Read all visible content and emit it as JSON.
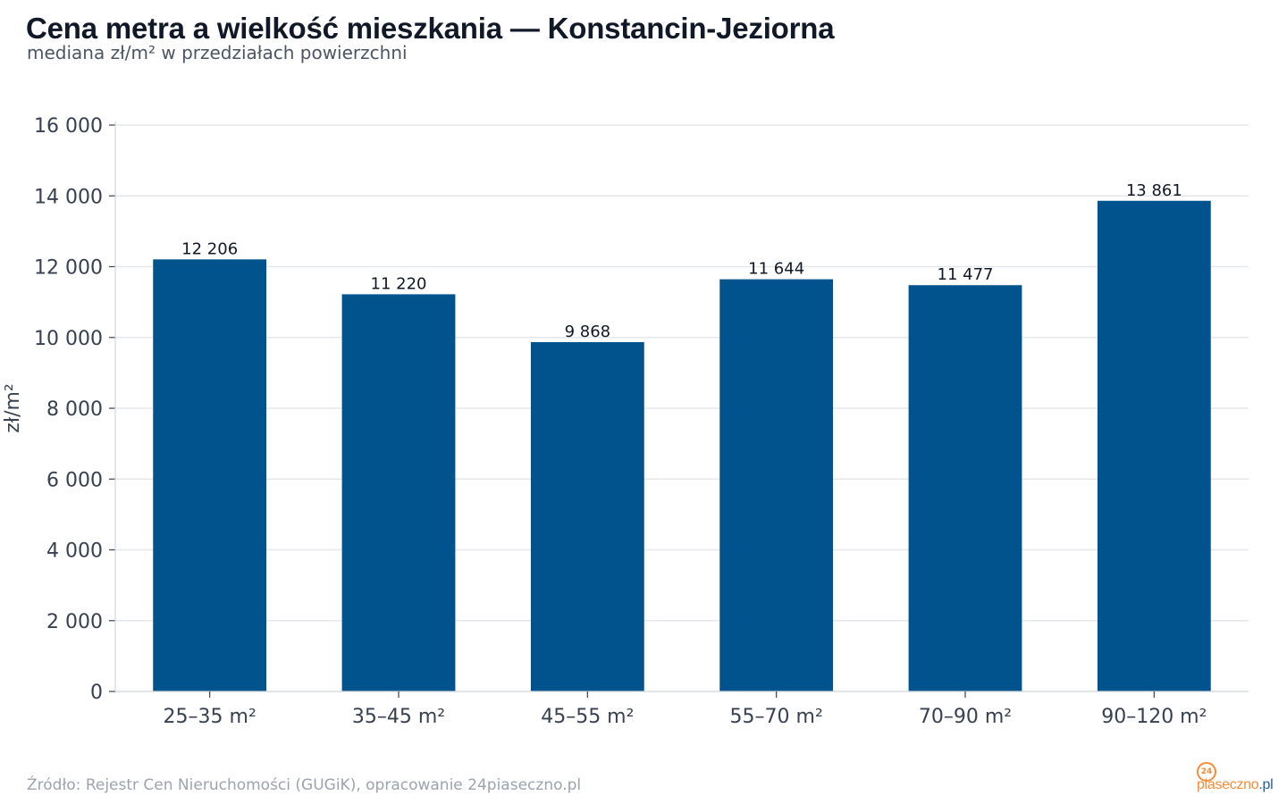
{
  "header": {
    "title": "Cena metra a wielkość mieszkania — Konstancin-Jeziorna",
    "subtitle": "mediana zł/m² w przedziałach powierzchni"
  },
  "footer": {
    "source": "Źródło: Rejestr Cen Nieruchomości (GUGiK), opracowanie 24piaseczno.pl"
  },
  "logo": {
    "badge": "24",
    "name": "piaseczno",
    "tld": ".pl",
    "name_color": "#f28c38",
    "tld_color": "#1f5f99"
  },
  "chart_data": {
    "type": "bar",
    "title": "Cena metra a wielkość mieszkania — Konstancin-Jeziorna",
    "subtitle": "mediana zł/m² w przedziałach powierzchni",
    "xlabel": "",
    "ylabel": "zł/m²",
    "categories": [
      "25–35 m²",
      "35–45 m²",
      "45–55 m²",
      "55–70 m²",
      "70–90 m²",
      "90–120 m²"
    ],
    "values": [
      12206,
      11220,
      9868,
      11644,
      11477,
      13861
    ],
    "value_labels": [
      "12 206",
      "11 220",
      "9 868",
      "11 644",
      "11 477",
      "13 861"
    ],
    "ylim": [
      0,
      16000
    ],
    "yticks": [
      0,
      2000,
      4000,
      6000,
      8000,
      10000,
      12000,
      14000,
      16000
    ],
    "ytick_labels": [
      "0",
      "2 000",
      "4 000",
      "6 000",
      "8 000",
      "10 000",
      "12 000",
      "14 000",
      "16 000"
    ],
    "grid": true,
    "legend": false,
    "bar_color": "#00538c",
    "grid_color": "#e5e7eb"
  }
}
